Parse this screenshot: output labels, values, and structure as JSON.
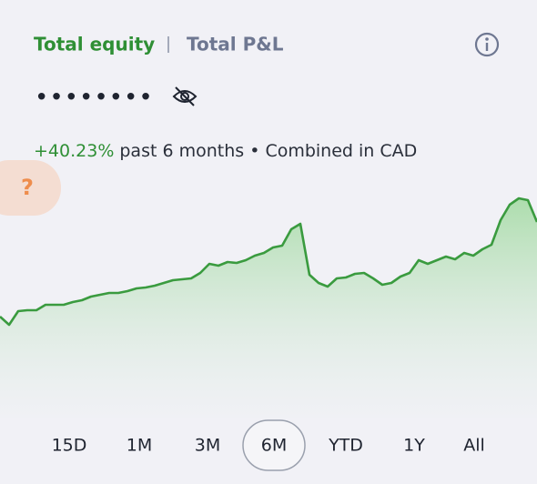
{
  "tabs": [
    "Total equity",
    "Total P&L"
  ],
  "active_tab": 0,
  "masked_balance": "••••••••",
  "performance": {
    "change": "+40.23%",
    "text": "past 6 months • Combined in CAD"
  },
  "help": "?",
  "chart_data": {
    "type": "area",
    "color": "#3a9b3f",
    "values": [
      112,
      103,
      118,
      119,
      119,
      125,
      125,
      125,
      128,
      130,
      134,
      136,
      138,
      138,
      140,
      143,
      144,
      146,
      149,
      152,
      153,
      154,
      160,
      170,
      168,
      172,
      171,
      174,
      179,
      182,
      188,
      190,
      208,
      214,
      158,
      149,
      145,
      154,
      155,
      159,
      160,
      154,
      147,
      149,
      156,
      160,
      174,
      170,
      174,
      178,
      175,
      182,
      179,
      186,
      191,
      218,
      235,
      242,
      240,
      216
    ],
    "ylim": [
      0,
      260
    ]
  },
  "ranges": [
    "15D",
    "1M",
    "3M",
    "6M",
    "YTD",
    "1Y",
    "All"
  ],
  "selected_range": 3
}
